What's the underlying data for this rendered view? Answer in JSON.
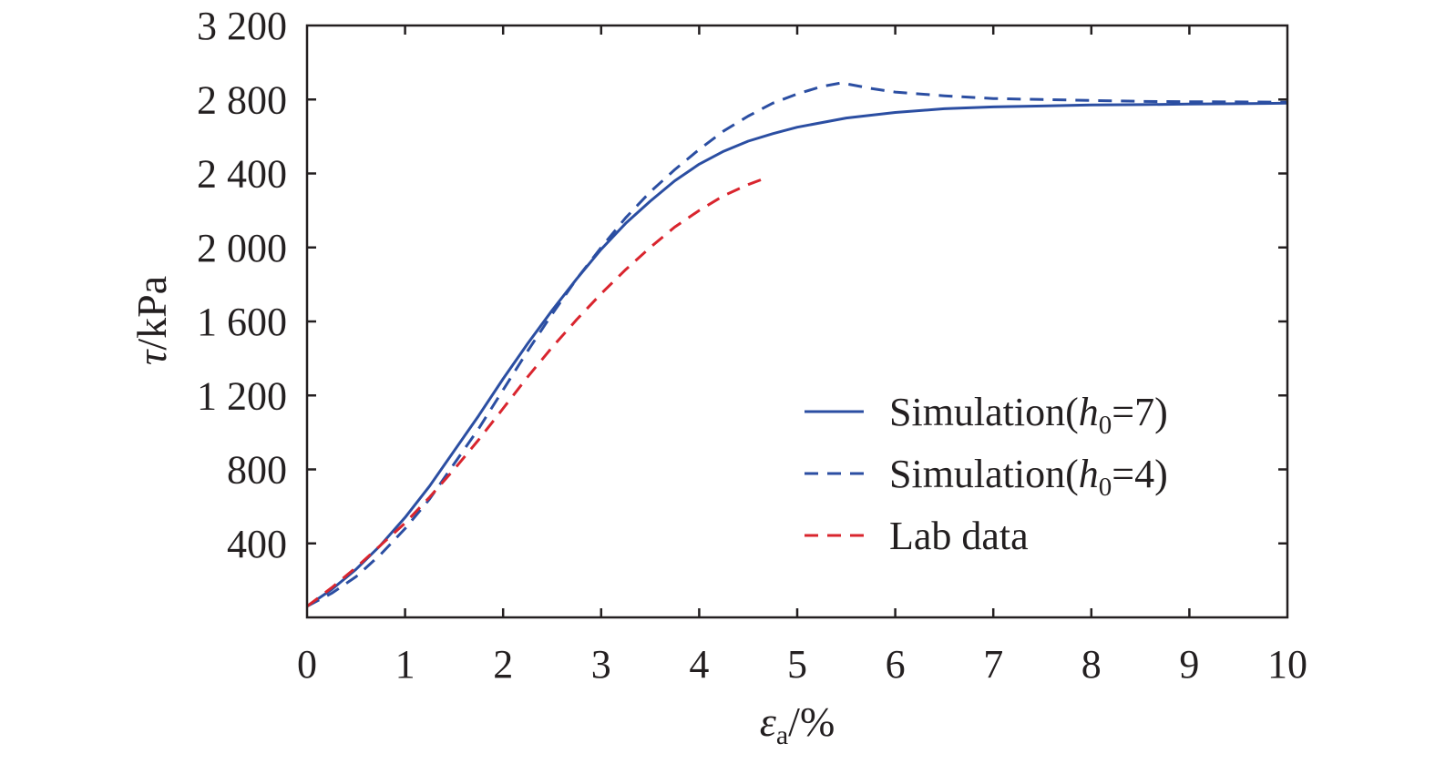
{
  "chart_data": {
    "type": "line",
    "title": "",
    "xlabel": {
      "symbol": "ε",
      "subscript": "a",
      "unit": "/%"
    },
    "ylabel": {
      "symbol": "τ",
      "unit": "/kPa"
    },
    "xlim": [
      0,
      10
    ],
    "ylim": [
      0,
      3200
    ],
    "x_ticks": [
      0,
      1,
      2,
      3,
      4,
      5,
      6,
      7,
      8,
      9,
      10
    ],
    "x_tick_labels": [
      "0",
      "1",
      "2",
      "3",
      "4",
      "5",
      "6",
      "7",
      "8",
      "9",
      "10"
    ],
    "y_ticks": [
      400,
      800,
      1200,
      1600,
      2000,
      2400,
      2800,
      3200
    ],
    "y_tick_labels": [
      "400",
      "800",
      "1 200",
      "1 600",
      "2 000",
      "2 400",
      "2 800",
      "3 200"
    ],
    "grid": false,
    "legend_position": "bottom-right",
    "series": [
      {
        "name": {
          "prefix": "Simulation(",
          "var": "h",
          "subscript": "0",
          "suffix": "=7)"
        },
        "color": "#2b4ea2",
        "style": "solid",
        "x": [
          0,
          0.25,
          0.5,
          0.75,
          1.0,
          1.25,
          1.5,
          1.75,
          2.0,
          2.25,
          2.5,
          2.75,
          3.0,
          3.25,
          3.5,
          3.75,
          4.0,
          4.25,
          4.5,
          4.75,
          5.0,
          5.5,
          6.0,
          6.5,
          7.0,
          7.5,
          8.0,
          8.5,
          9.0,
          9.5,
          10.0
        ],
        "y": [
          60,
          150,
          260,
          390,
          540,
          710,
          900,
          1090,
          1290,
          1480,
          1660,
          1830,
          1990,
          2130,
          2250,
          2360,
          2450,
          2520,
          2575,
          2615,
          2650,
          2700,
          2730,
          2750,
          2760,
          2765,
          2770,
          2772,
          2775,
          2777,
          2780
        ]
      },
      {
        "name": {
          "prefix": "Simulation(",
          "var": "h",
          "subscript": "0",
          "suffix": "=4)"
        },
        "color": "#2b4ea2",
        "style": "dashed",
        "x": [
          0,
          0.25,
          0.5,
          0.75,
          1.0,
          1.25,
          1.5,
          1.75,
          2.0,
          2.25,
          2.5,
          2.75,
          3.0,
          3.25,
          3.5,
          3.75,
          4.0,
          4.25,
          4.5,
          4.75,
          5.0,
          5.25,
          5.45,
          5.75,
          6.0,
          6.5,
          7.0,
          7.5,
          8.0,
          8.5,
          9.0,
          9.5,
          10.0
        ],
        "y": [
          60,
          130,
          220,
          340,
          480,
          640,
          830,
          1020,
          1230,
          1440,
          1640,
          1830,
          2000,
          2160,
          2300,
          2420,
          2530,
          2630,
          2710,
          2780,
          2830,
          2870,
          2890,
          2860,
          2840,
          2820,
          2805,
          2800,
          2795,
          2790,
          2788,
          2787,
          2785
        ]
      },
      {
        "name": {
          "prefix": "Lab data",
          "var": "",
          "subscript": "",
          "suffix": ""
        },
        "color": "#d9252e",
        "style": "dashed",
        "x": [
          0,
          0.25,
          0.5,
          0.75,
          1.0,
          1.25,
          1.5,
          1.75,
          2.0,
          2.25,
          2.5,
          2.75,
          3.0,
          3.25,
          3.5,
          3.75,
          4.0,
          4.25,
          4.5,
          4.7
        ],
        "y": [
          60,
          160,
          270,
          390,
          510,
          650,
          800,
          960,
          1130,
          1300,
          1460,
          1610,
          1750,
          1880,
          2000,
          2110,
          2200,
          2280,
          2340,
          2380
        ]
      }
    ]
  }
}
